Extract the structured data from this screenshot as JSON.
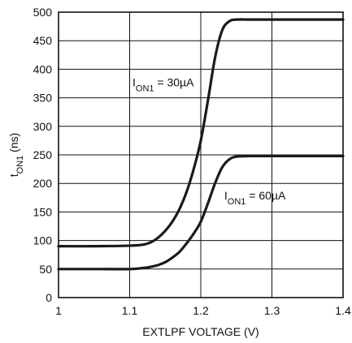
{
  "chart_data": {
    "type": "line",
    "xlabel": "EXTLPF VOLTAGE (V)",
    "ylabel": {
      "main": "t",
      "sub": "ON1",
      "rest": " (ns)"
    },
    "xlim": [
      1,
      1.4
    ],
    "ylim": [
      0,
      500
    ],
    "x_ticks": [
      1,
      1.1,
      1.2,
      1.3,
      1.4
    ],
    "x_tick_labels": [
      "1",
      "1.1",
      "1.2",
      "1.3",
      "1.4"
    ],
    "y_ticks": [
      0,
      50,
      100,
      150,
      200,
      250,
      300,
      350,
      400,
      450,
      500
    ],
    "y_tick_labels": [
      "0",
      "50",
      "100",
      "150",
      "200",
      "250",
      "300",
      "350",
      "400",
      "450",
      "500"
    ],
    "grid": true,
    "series": [
      {
        "x": [
          1.0,
          1.05,
          1.1,
          1.12,
          1.13,
          1.14,
          1.15,
          1.16,
          1.17,
          1.18,
          1.19,
          1.2,
          1.21,
          1.22,
          1.23,
          1.24,
          1.25,
          1.27,
          1.3,
          1.35,
          1.4
        ],
        "values": [
          90,
          90,
          91,
          93,
          97,
          105,
          117,
          133,
          155,
          185,
          225,
          275,
          345,
          420,
          468,
          484,
          487,
          487,
          487,
          487,
          487
        ]
      },
      {
        "x": [
          1.0,
          1.05,
          1.1,
          1.12,
          1.13,
          1.14,
          1.15,
          1.16,
          1.17,
          1.18,
          1.19,
          1.2,
          1.21,
          1.22,
          1.23,
          1.24,
          1.25,
          1.27,
          1.3,
          1.35,
          1.4
        ],
        "values": [
          50,
          50,
          50,
          52,
          54,
          57,
          62,
          70,
          80,
          95,
          112,
          133,
          165,
          200,
          228,
          242,
          247,
          248,
          248,
          248,
          248
        ]
      }
    ],
    "annotations": [
      {
        "main": "I",
        "sub": "ON1",
        "rest": " = 30µA",
        "x": 1.104,
        "y": 370
      },
      {
        "main": "I",
        "sub": "ON1",
        "rest": " = 60µA",
        "x": 1.233,
        "y": 172
      }
    ]
  }
}
